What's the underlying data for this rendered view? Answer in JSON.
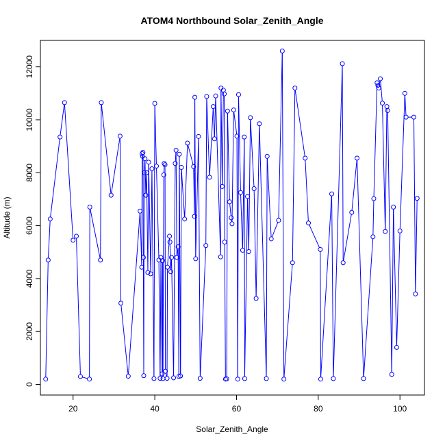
{
  "chart_data": {
    "type": "line",
    "title": "ATOM4 Northbound Solar_Zenith_Angle",
    "xlabel": "Solar_Zenith_Angle",
    "ylabel": "Altitude (m)",
    "xlim": [
      12,
      106
    ],
    "ylim": [
      -400,
      13000
    ],
    "x_ticks": [
      "20",
      "40",
      "60",
      "80",
      "100"
    ],
    "y_ticks": [
      "0",
      "2000",
      "4000",
      "6000",
      "8000",
      "10000",
      "12000"
    ],
    "grid": false,
    "legend": "none",
    "markers": "open-circle",
    "series_color": "#0000ff",
    "points": [
      [
        13.3,
        200
      ],
      [
        13.9,
        4700
      ],
      [
        14.4,
        6250
      ],
      [
        16.8,
        9350
      ],
      [
        17.9,
        10650
      ],
      [
        20.0,
        5450
      ],
      [
        20.8,
        5600
      ],
      [
        21.8,
        300
      ],
      [
        24.0,
        200
      ],
      [
        24.1,
        6700
      ],
      [
        26.7,
        4700
      ],
      [
        26.9,
        10650
      ],
      [
        29.3,
        7150
      ],
      [
        31.5,
        9380
      ],
      [
        31.7,
        3070
      ],
      [
        33.5,
        310
      ],
      [
        36.4,
        6550
      ],
      [
        36.8,
        4430
      ],
      [
        36.9,
        8720
      ],
      [
        37.0,
        8620
      ],
      [
        37.1,
        8770
      ],
      [
        37.2,
        4800
      ],
      [
        37.3,
        330
      ],
      [
        37.4,
        8000
      ],
      [
        37.6,
        8530
      ],
      [
        37.8,
        7150
      ],
      [
        38.0,
        8000
      ],
      [
        38.3,
        4230
      ],
      [
        38.5,
        8400
      ],
      [
        39.0,
        4180
      ],
      [
        39.3,
        8150
      ],
      [
        39.8,
        220
      ],
      [
        40.0,
        10620
      ],
      [
        40.4,
        8250
      ],
      [
        41.0,
        4700
      ],
      [
        41.3,
        230
      ],
      [
        41.5,
        4800
      ],
      [
        41.8,
        400
      ],
      [
        41.9,
        4680
      ],
      [
        42.0,
        220
      ],
      [
        42.2,
        7920
      ],
      [
        42.3,
        8350
      ],
      [
        42.5,
        8300
      ],
      [
        42.6,
        500
      ],
      [
        43.0,
        230
      ],
      [
        43.1,
        4430
      ],
      [
        43.6,
        5600
      ],
      [
        43.7,
        5380
      ],
      [
        43.9,
        4260
      ],
      [
        44.1,
        4800
      ],
      [
        44.6,
        250
      ],
      [
        45.0,
        8350
      ],
      [
        45.2,
        8850
      ],
      [
        45.4,
        4800
      ],
      [
        45.7,
        5200
      ],
      [
        45.9,
        300
      ],
      [
        46.0,
        8700
      ],
      [
        46.3,
        320
      ],
      [
        46.5,
        8200
      ],
      [
        47.3,
        6250
      ],
      [
        48.0,
        9120
      ],
      [
        49.5,
        8230
      ],
      [
        49.7,
        6350
      ],
      [
        49.8,
        10850
      ],
      [
        50.0,
        4750
      ],
      [
        50.7,
        9370
      ],
      [
        51.1,
        230
      ],
      [
        52.5,
        5250
      ],
      [
        52.7,
        10880
      ],
      [
        53.4,
        7830
      ],
      [
        54.3,
        10500
      ],
      [
        54.6,
        9280
      ],
      [
        54.9,
        10900
      ],
      [
        56.1,
        4820
      ],
      [
        56.2,
        11200
      ],
      [
        56.5,
        7480
      ],
      [
        56.8,
        11120
      ],
      [
        57.0,
        10980
      ],
      [
        57.1,
        5380
      ],
      [
        57.3,
        200
      ],
      [
        57.6,
        210
      ],
      [
        57.8,
        10330
      ],
      [
        58.3,
        6900
      ],
      [
        58.7,
        6300
      ],
      [
        58.9,
        6070
      ],
      [
        59.3,
        10370
      ],
      [
        60.1,
        9380
      ],
      [
        60.3,
        200
      ],
      [
        60.5,
        10950
      ],
      [
        61.0,
        7250
      ],
      [
        61.5,
        5070
      ],
      [
        61.9,
        9350
      ],
      [
        62.0,
        220
      ],
      [
        62.7,
        7100
      ],
      [
        63.0,
        5020
      ],
      [
        63.4,
        10080
      ],
      [
        64.3,
        7400
      ],
      [
        64.8,
        3250
      ],
      [
        65.6,
        9850
      ],
      [
        67.3,
        220
      ],
      [
        67.5,
        8620
      ],
      [
        68.5,
        5500
      ],
      [
        70.3,
        6200
      ],
      [
        71.2,
        12600
      ],
      [
        71.6,
        200
      ],
      [
        73.7,
        4600
      ],
      [
        74.3,
        11200
      ],
      [
        76.8,
        8550
      ],
      [
        77.6,
        6100
      ],
      [
        80.5,
        5100
      ],
      [
        80.6,
        200
      ],
      [
        83.3,
        7200
      ],
      [
        83.7,
        220
      ],
      [
        85.9,
        12120
      ],
      [
        86.1,
        4600
      ],
      [
        88.2,
        6500
      ],
      [
        89.5,
        8550
      ],
      [
        91.1,
        220
      ],
      [
        93.4,
        5580
      ],
      [
        93.6,
        7020
      ],
      [
        94.4,
        11400
      ],
      [
        94.6,
        11300
      ],
      [
        94.8,
        11200
      ],
      [
        95.2,
        11550
      ],
      [
        95.7,
        10630
      ],
      [
        96.4,
        5780
      ],
      [
        96.8,
        10500
      ],
      [
        97.0,
        10350
      ],
      [
        98.0,
        380
      ],
      [
        98.4,
        6700
      ],
      [
        99.2,
        1400
      ],
      [
        100.0,
        5800
      ],
      [
        101.2,
        11000
      ],
      [
        101.5,
        10100
      ],
      [
        103.4,
        10100
      ],
      [
        103.8,
        3420
      ],
      [
        104.2,
        7030
      ]
    ]
  }
}
